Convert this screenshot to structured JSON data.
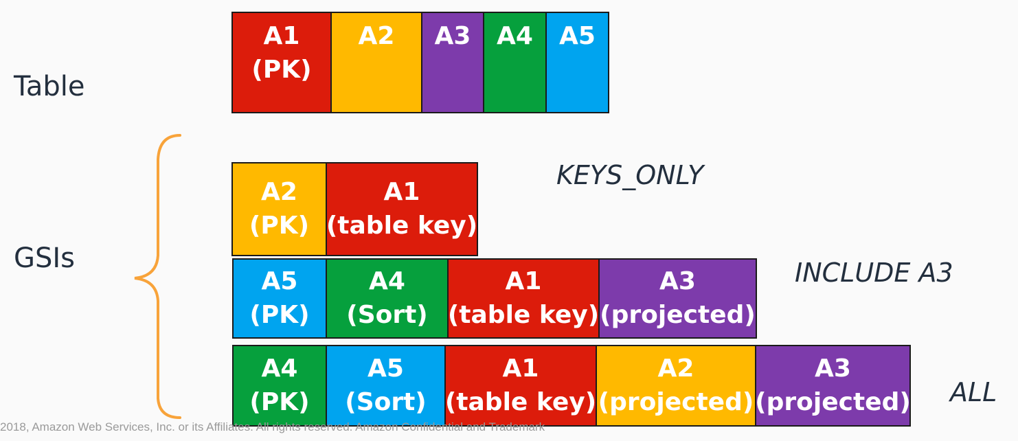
{
  "labels": {
    "table": "Table",
    "gsis": "GSIs"
  },
  "colors": {
    "red": "#dc1c0b",
    "yellow": "#ffb900",
    "purple": "#7d3bab",
    "green": "#06a03d",
    "blue": "#00a4ef",
    "brace": "#f8a33a"
  },
  "table_row": [
    {
      "name": "A1",
      "role": "(PK)",
      "color": "red"
    },
    {
      "name": "A2",
      "role": "",
      "color": "yellow"
    },
    {
      "name": "A3",
      "role": "",
      "color": "purple"
    },
    {
      "name": "A4",
      "role": "",
      "color": "green"
    },
    {
      "name": "A5",
      "role": "",
      "color": "blue"
    }
  ],
  "gsis": [
    {
      "projection": "KEYS_ONLY",
      "cells": [
        {
          "name": "A2",
          "role": "(PK)",
          "color": "yellow"
        },
        {
          "name": "A1",
          "role": "(table key)",
          "color": "red"
        }
      ]
    },
    {
      "projection": "INCLUDE A3",
      "cells": [
        {
          "name": "A5",
          "role": "(PK)",
          "color": "blue"
        },
        {
          "name": "A4",
          "role": "(Sort)",
          "color": "green"
        },
        {
          "name": "A1",
          "role": "(table key)",
          "color": "red"
        },
        {
          "name": "A3",
          "role": "(projected)",
          "color": "purple"
        }
      ]
    },
    {
      "projection": "ALL",
      "cells": [
        {
          "name": "A4",
          "role": "(PK)",
          "color": "green"
        },
        {
          "name": "A5",
          "role": "(Sort)",
          "color": "blue"
        },
        {
          "name": "A1",
          "role": "(table key)",
          "color": "red"
        },
        {
          "name": "A2",
          "role": "(projected)",
          "color": "yellow"
        },
        {
          "name": "A3",
          "role": "(projected)",
          "color": "purple"
        }
      ]
    }
  ],
  "footer": "2018, Amazon Web Services, Inc. or its Affiliates. All rights reserved. Amazon Confidential and Trademark"
}
